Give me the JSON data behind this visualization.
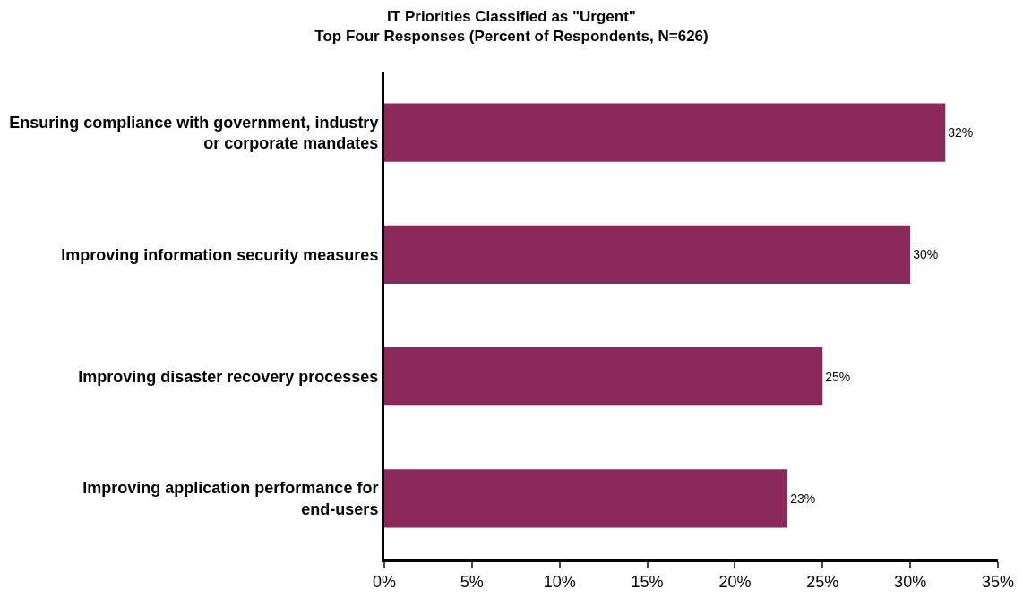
{
  "chart_data": {
    "type": "bar",
    "orientation": "horizontal",
    "title": "IT Priorities Classified as \"Urgent\"",
    "subtitle": "Top Four Responses (Percent of Respondents, N=626)",
    "categories": [
      "Ensuring compliance with government, industry or corporate mandates",
      "Improving information security measures",
      "Improving disaster recovery processes",
      "Improving application performance for end-users"
    ],
    "values": [
      32,
      30,
      25,
      23
    ],
    "value_labels": [
      "32%",
      "30%",
      "25%",
      "23%"
    ],
    "color": "#8b2a5a",
    "xlim": [
      0,
      35
    ],
    "xticks": [
      {
        "value": 0,
        "label": "0%"
      },
      {
        "value": 5,
        "label": "5%"
      },
      {
        "value": 10,
        "label": "10%"
      },
      {
        "value": 15,
        "label": "15%"
      },
      {
        "value": 20,
        "label": "20%"
      },
      {
        "value": 25,
        "label": "25%"
      },
      {
        "value": 30,
        "label": "30%"
      },
      {
        "value": 35,
        "label": "35%"
      }
    ],
    "legend": false
  }
}
